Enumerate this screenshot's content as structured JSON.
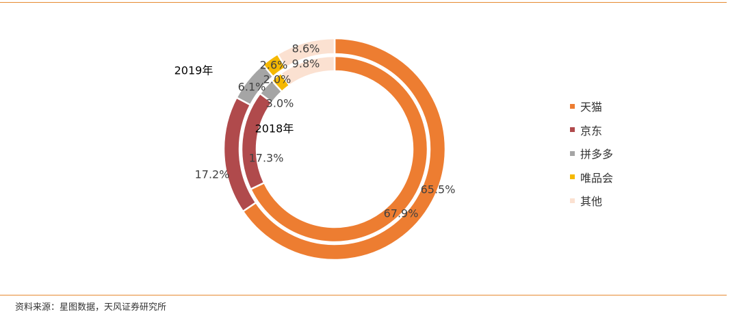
{
  "chart_data": {
    "type": "donut",
    "title": "",
    "categories": [
      "天猫",
      "京东",
      "拼多多",
      "唯品会",
      "其他"
    ],
    "colors": [
      "#ed7d31",
      "#b04a4c",
      "#a5a5a5",
      "#f5b800",
      "#fbe1d1"
    ],
    "series": [
      {
        "name": "2019年",
        "ring": "outer",
        "values": [
          65.5,
          17.2,
          6.1,
          2.6,
          8.6
        ],
        "labels": [
          "65.5%",
          "17.2%",
          "6.1%",
          "2.6%",
          "8.6%"
        ]
      },
      {
        "name": "2018年",
        "ring": "inner",
        "values": [
          67.9,
          17.3,
          3.0,
          2.0,
          9.8
        ],
        "labels": [
          "67.9%",
          "17.3%",
          "3.0%",
          "2.0%",
          "9.8%"
        ]
      }
    ],
    "legend_position": "right"
  },
  "source_note": "资料来源：星图数据，天风证券研究所"
}
